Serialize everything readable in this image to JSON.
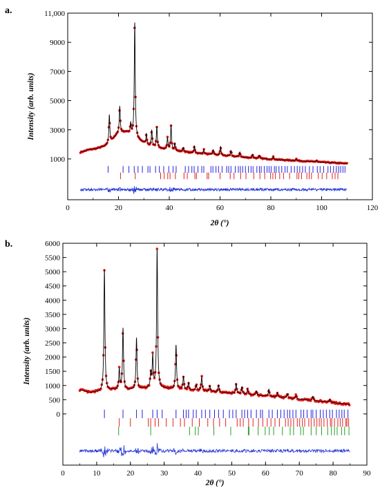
{
  "chart_data": [
    {
      "type": "line",
      "panel_label": "a.",
      "xlabel": "2θ (°)",
      "ylabel": "Intensity (arb. units)",
      "xlim": [
        0,
        120
      ],
      "ylim": [
        -1800,
        11000
      ],
      "x_ticks": [
        0,
        20,
        40,
        60,
        80,
        100,
        120
      ],
      "x_tick_labels": [
        "0",
        "20",
        "40",
        "60",
        "80",
        "100",
        "120"
      ],
      "y_ticks": [
        1000,
        3000,
        5000,
        7000,
        9000,
        11000
      ],
      "y_tick_labels": [
        "1000",
        "3000",
        "5000",
        "7000",
        "9000",
        "11,000"
      ],
      "pattern_range": [
        5,
        110
      ],
      "background": [
        [
          5,
          1450
        ],
        [
          8,
          1620
        ],
        [
          11,
          1700
        ],
        [
          15,
          1900
        ],
        [
          18,
          2400
        ],
        [
          20,
          2800
        ],
        [
          23,
          2850
        ],
        [
          26,
          2600
        ],
        [
          28,
          2300
        ],
        [
          32,
          1900
        ],
        [
          40,
          1600
        ],
        [
          50,
          1400
        ],
        [
          60,
          1250
        ],
        [
          70,
          1100
        ],
        [
          80,
          980
        ],
        [
          90,
          880
        ],
        [
          100,
          780
        ],
        [
          110,
          680
        ]
      ],
      "peaks": [
        [
          16.4,
          1900
        ],
        [
          20.5,
          1800
        ],
        [
          24.8,
          700
        ],
        [
          26.4,
          7800
        ],
        [
          31,
          700
        ],
        [
          33.1,
          1100
        ],
        [
          35.1,
          1400
        ],
        [
          39.3,
          800
        ],
        [
          40.7,
          1700
        ],
        [
          42.2,
          500
        ],
        [
          45.5,
          300
        ],
        [
          49.9,
          500
        ],
        [
          53.6,
          300
        ],
        [
          57.3,
          350
        ],
        [
          60.2,
          600
        ],
        [
          64.3,
          400
        ],
        [
          67.8,
          350
        ],
        [
          72.8,
          250
        ],
        [
          75.5,
          200
        ],
        [
          81,
          180
        ],
        [
          90,
          120
        ],
        [
          98,
          100
        ]
      ],
      "tick_rows": [
        {
          "color": "#2020e0",
          "y_center": 280,
          "half_height": 230,
          "positions": [
            15.9,
            21.8,
            24.1,
            26.2,
            27.7,
            29.4,
            31.6,
            32.4,
            34.6,
            36.1,
            37.8,
            39.8,
            41.5,
            42.7,
            46.3,
            47.6,
            48.9,
            49.8,
            51.3,
            52.8,
            53.6,
            56.4,
            57.2,
            58.4,
            59.4,
            60.8,
            62.6,
            63.4,
            64.3,
            66.0,
            67.2,
            68.0,
            68.9,
            70.0,
            71.2,
            72.2,
            73.0,
            74.5,
            75.5,
            76.2,
            77.4,
            78.5,
            79.3,
            80.1,
            81.4,
            82.1,
            83.2,
            84.3,
            85.6,
            86.5,
            88.0,
            89.3,
            90.4,
            91.4,
            92.5,
            93.6,
            95.2,
            96.6,
            98.3,
            99.4,
            100.8,
            102.5,
            103.5,
            104.7,
            105.8,
            106.7,
            107.5,
            108.4,
            109.2
          ]
        },
        {
          "color": "#e02020",
          "y_center": -160,
          "half_height": 230,
          "positions": [
            20.8,
            26.6,
            36.6,
            38.0,
            39.4,
            40.3,
            42.4,
            45.8,
            47.1,
            50.1,
            50.7,
            54.9,
            55.5,
            60.0,
            64.0,
            65.5,
            68.1,
            70.2,
            73.3,
            75.7,
            77.6,
            79.9,
            80.8,
            81.8,
            83.5,
            85.0,
            87.4,
            90.3,
            91.0,
            92.1,
            94.2,
            95.1,
            96.0,
            98.7,
            100.2,
            102.0,
            104.2,
            105.3,
            106.4
          ]
        }
      ],
      "difference_baseline": -1100
    },
    {
      "type": "line",
      "panel_label": "b.",
      "xlabel": "2θ (°)",
      "ylabel": "Intensity (arb. units)",
      "xlim": [
        0,
        90
      ],
      "ylim": [
        -1800,
        6000
      ],
      "x_ticks": [
        0,
        10,
        20,
        30,
        40,
        50,
        60,
        70,
        80,
        90
      ],
      "x_tick_labels": [
        "0",
        "10",
        "20",
        "30",
        "40",
        "50",
        "60",
        "70",
        "80",
        "90"
      ],
      "y_ticks": [
        0,
        500,
        1000,
        1500,
        2000,
        2500,
        3000,
        3500,
        4000,
        4500,
        5000,
        5500,
        6000
      ],
      "y_tick_labels": [
        "0",
        "500",
        "1000",
        "1500",
        "2000",
        "2500",
        "3000",
        "3500",
        "4000",
        "4500",
        "5000",
        "5500",
        "6000"
      ],
      "pattern_range": [
        5,
        85
      ],
      "background": [
        [
          5,
          850
        ],
        [
          8,
          750
        ],
        [
          12,
          800
        ],
        [
          15,
          850
        ],
        [
          20,
          850
        ],
        [
          25,
          900
        ],
        [
          27,
          900
        ],
        [
          30,
          900
        ],
        [
          35,
          860
        ],
        [
          40,
          820
        ],
        [
          45,
          780
        ],
        [
          50,
          730
        ],
        [
          55,
          680
        ],
        [
          60,
          630
        ],
        [
          65,
          580
        ],
        [
          70,
          520
        ],
        [
          75,
          460
        ],
        [
          80,
          400
        ],
        [
          85,
          330
        ]
      ],
      "peaks": [
        [
          12.3,
          4300
        ],
        [
          16.7,
          700
        ],
        [
          17.8,
          2150
        ],
        [
          21.8,
          1800
        ],
        [
          26,
          500
        ],
        [
          26.6,
          1100
        ],
        [
          27.9,
          4900
        ],
        [
          33.5,
          1550
        ],
        [
          35.7,
          450
        ],
        [
          37.2,
          250
        ],
        [
          39.5,
          200
        ],
        [
          41.1,
          500
        ],
        [
          43.5,
          200
        ],
        [
          46.1,
          250
        ],
        [
          51.3,
          350
        ],
        [
          53,
          250
        ],
        [
          54.7,
          200
        ],
        [
          57.3,
          150
        ],
        [
          61,
          250
        ],
        [
          63.5,
          150
        ],
        [
          66.5,
          150
        ],
        [
          69,
          120
        ],
        [
          74,
          150
        ],
        [
          79,
          100
        ]
      ],
      "tick_rows": [
        {
          "color": "#2020e0",
          "y_center": 0,
          "half_height": 150,
          "positions": [
            12.3,
            17.8,
            21.8,
            23.5,
            26.6,
            27.9,
            29.4,
            33.5,
            35.7,
            36.5,
            37.2,
            38.6,
            39.5,
            41.1,
            42.2,
            43.5,
            44.9,
            46.1,
            47.5,
            49.3,
            50.3,
            51.3,
            53.0,
            53.8,
            54.7,
            55.7,
            57.3,
            58.5,
            59.1,
            61.0,
            62.0,
            63.5,
            64.5,
            65.5,
            66.5,
            67.2,
            68.1,
            69.0,
            70.5,
            71.3,
            72.3,
            73.5,
            74.0,
            75.0,
            76.2,
            77.1,
            78.0,
            79.0,
            79.8,
            81.0,
            81.8,
            82.6,
            83.3,
            84.4
          ]
        },
        {
          "color": "#e02020",
          "y_center": -300,
          "half_height": 150,
          "positions": [
            16.7,
            20.0,
            25.3,
            26.0,
            27.3,
            28.3,
            30.6,
            32.6,
            34.8,
            36.0,
            38.3,
            40.4,
            42.9,
            44.6,
            46.4,
            48.2,
            51.6,
            52.5,
            53.4,
            55.0,
            56.3,
            57.9,
            59.2,
            60.5,
            61.6,
            62.8,
            64.1,
            65.9,
            66.7,
            67.5,
            68.3,
            69.4,
            70.1,
            70.9,
            71.6,
            72.8,
            73.5,
            74.4,
            75.2,
            75.9,
            76.5,
            77.3,
            78.3,
            79.2,
            79.6,
            80.4,
            81.4,
            82.1,
            82.8,
            83.8,
            84.1,
            84.6
          ]
        },
        {
          "color": "#20a020",
          "y_center": -600,
          "half_height": 150,
          "positions": [
            16.5,
            26.0,
            37.5,
            39.2,
            40.1,
            44.7,
            49.7,
            54.9,
            55.1,
            57.8,
            59.9,
            61.1,
            62.4,
            65.0,
            67.3,
            68.3,
            70.4,
            71.2,
            73.5,
            75.0,
            76.6,
            78.4,
            79.5,
            80.4,
            81.2,
            82.5,
            83.4,
            84.7
          ]
        }
      ],
      "difference_baseline": -1300
    }
  ]
}
